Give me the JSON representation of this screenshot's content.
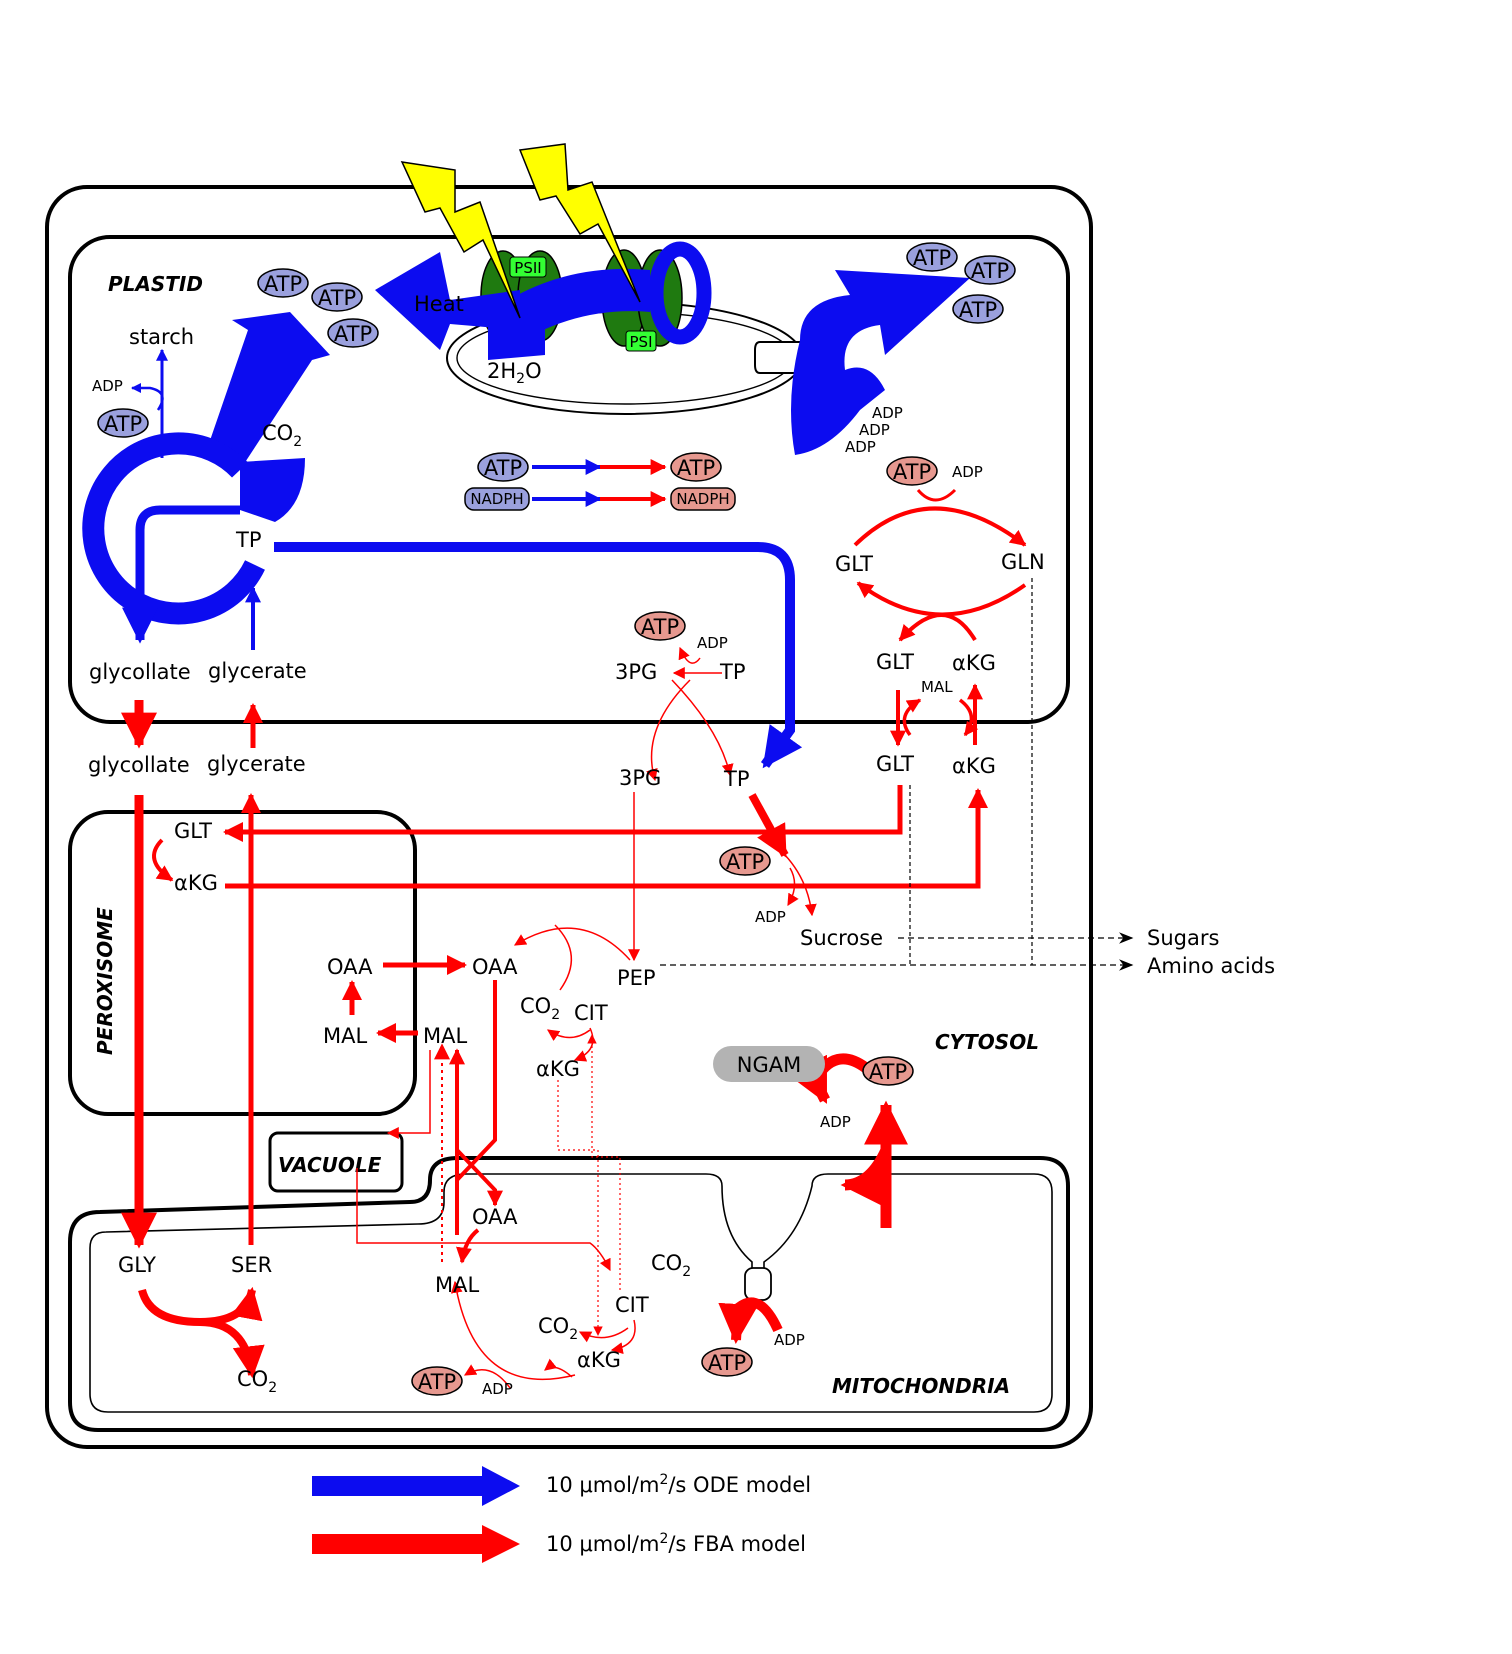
{
  "colors": {
    "ode": "#0c0cf0",
    "fba": "#ff0000",
    "atp_blue_fill": "#9aa0dd",
    "atp_red_fill": "#e6988f",
    "bolt": "#ffff00",
    "photosystem": "#1f7a10",
    "ps_label": "#33ff33",
    "ngam": "#b3b3b3"
  },
  "compartments": {
    "plastid": "PLASTID",
    "peroxisome": "PEROXISOME",
    "cytosol": "CYTOSOL",
    "vacuole": "VACUOLE",
    "mitochondria": "MITOCHONDRIA"
  },
  "photosystems": {
    "psii": "PSII",
    "psi": "PSI"
  },
  "plastid": {
    "atp": "ATP",
    "adp": "ADP",
    "nadph": "NADPH",
    "starch": "starch",
    "heat": "Heat",
    "water": "2H",
    "water_sub": "2",
    "water_end": "O",
    "co2": "CO",
    "co2_sub": "2",
    "tp": "TP",
    "glycollate": "glycollate",
    "glycerate": "glycerate",
    "pg3": "3PG",
    "glt": "GLT",
    "gln": "GLN",
    "akg": "αKG",
    "mal": "MAL"
  },
  "cytosol": {
    "glycollate": "glycollate",
    "glycerate": "glycerate",
    "pg3": "3PG",
    "tp": "TP",
    "glt": "GLT",
    "akg": "αKG",
    "atp": "ATP",
    "adp": "ADP",
    "sucrose": "Sucrose",
    "pep": "PEP",
    "oaa": "OAA",
    "mal": "MAL",
    "co2": "CO",
    "co2_sub": "2",
    "cit": "CIT",
    "sugars": "Sugars",
    "amino_acids": "Amino acids",
    "ngam": "NGAM"
  },
  "peroxisome": {
    "glt": "GLT",
    "akg": "αKG",
    "oaa": "OAA",
    "mal": "MAL"
  },
  "mitochondria": {
    "gly": "GLY",
    "ser": "SER",
    "co2": "CO",
    "co2_sub": "2",
    "oaa": "OAA",
    "mal": "MAL",
    "cit": "CIT",
    "akg": "αKG",
    "atp": "ATP",
    "adp": "ADP"
  },
  "legend": {
    "ode": {
      "pre": "10 μmol/m",
      "sup": "2",
      "post": "/s ODE model"
    },
    "fba": {
      "pre": "10 μmol/m",
      "sup": "2",
      "post": "/s FBA model"
    }
  }
}
